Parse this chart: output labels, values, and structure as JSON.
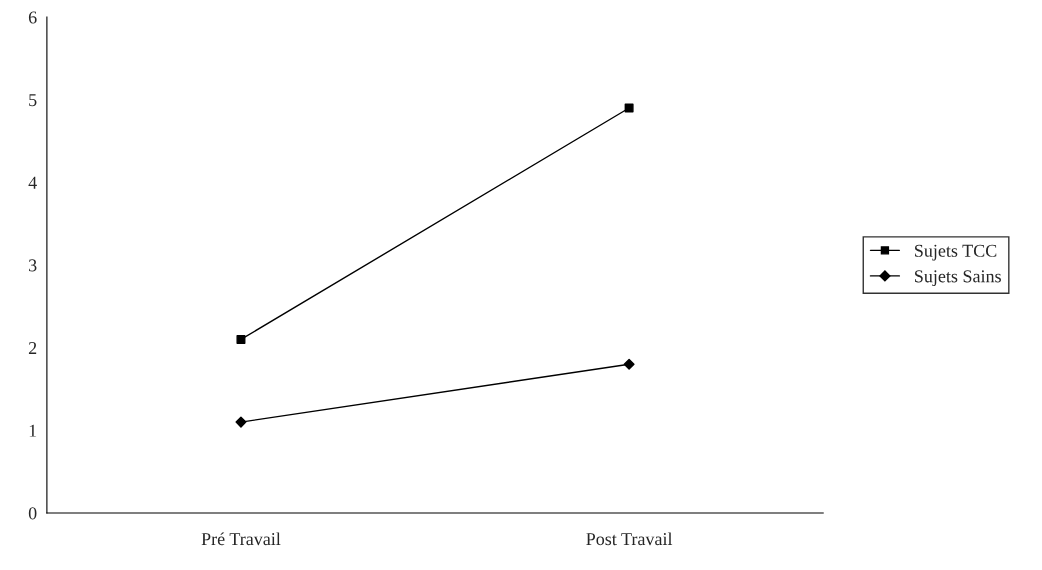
{
  "chart_data": {
    "type": "line",
    "categories": [
      "Pré Travail",
      "Post Travail"
    ],
    "series": [
      {
        "name": "Sujets TCC",
        "color": "#000000",
        "values": [
          2.1,
          4.9
        ],
        "marker": "square"
      },
      {
        "name": "Sujets Sains",
        "color": "#000000",
        "values": [
          1.1,
          1.8
        ],
        "marker": "diamond"
      }
    ],
    "ylim": [
      0,
      6
    ],
    "yticks": [
      0,
      1,
      2,
      3,
      4,
      5,
      6
    ],
    "grid": false,
    "legend": "right",
    "line_style": "solid"
  }
}
